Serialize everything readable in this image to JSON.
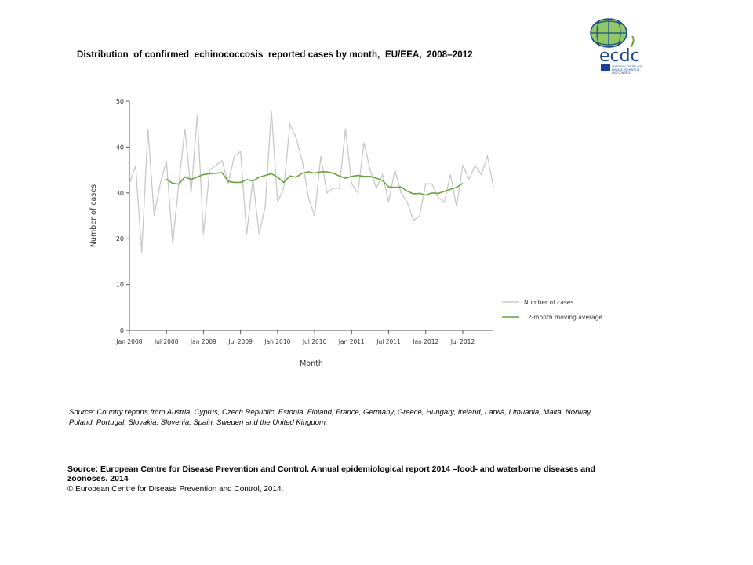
{
  "title": "Distribution  of confirmed  echinococcosis  reported cases by month,  EU/EEA,  2008–2012",
  "logo": {
    "text": "ecdc",
    "subtext": "EUROPEAN CENTRE FOR DISEASE PREVENTION AND CONTROL"
  },
  "note": "Source: Country reports from Austria, Cyprus, Czech Republic, Estonia, Finland, France, Germany, Greece, Hungary, Ireland, Latvia, Lithuania, Malta, Norway, Poland, Portugal, Slovakia, Slovenia, Spain, Sweden and the United Kingdom.",
  "source": "Source: European Centre for Disease Prevention and Control.  Annual epidemiological report 2014 –food- and waterborne diseases and zoonoses. 2014",
  "copyright": "© European Centre for Disease Prevention and Control, 2014.",
  "chart_data": {
    "type": "line",
    "xlabel": "Month",
    "ylabel": "Number of cases",
    "ylim": [
      0,
      50
    ],
    "yticks": [
      0,
      10,
      20,
      30,
      40,
      50
    ],
    "xticks": [
      "Jan 2008",
      "Jul 2008",
      "Jan 2009",
      "Jul 2009",
      "Jan 2010",
      "Jul 2010",
      "Jan 2011",
      "Jul 2011",
      "Jan 2012",
      "Jul 2012"
    ],
    "x_start": "Jan 2008",
    "x_end": "Dec 2012",
    "grid": false,
    "legend_position": "right",
    "series": [
      {
        "name": "Number of cases",
        "color": "#c8c8c8",
        "start": "Jan 2008",
        "values": [
          32,
          36,
          17,
          44,
          25,
          32,
          37,
          19,
          32,
          44,
          30,
          47,
          21,
          35,
          36,
          37,
          32,
          38,
          39,
          21,
          33,
          21,
          27,
          48,
          28,
          31,
          45,
          42,
          37,
          29,
          25,
          38,
          30,
          31,
          31,
          44,
          32,
          30,
          41,
          35,
          31,
          34,
          28,
          35,
          30,
          28,
          24,
          25,
          32,
          32,
          29,
          28,
          34,
          27,
          36,
          33,
          36,
          34,
          38,
          31
        ]
      },
      {
        "name": "12-month moving average",
        "color": "#6aa33a",
        "start": "Jul 2008",
        "values": [
          33,
          32.1,
          31.9,
          33.5,
          32.9,
          33.5,
          34,
          34.2,
          34.3,
          34.4,
          32.5,
          32.3,
          32.3,
          32.9,
          32.6,
          33.4,
          33.8,
          34.2,
          33.4,
          32.3,
          33.7,
          33.4,
          34.3,
          34.6,
          34.3,
          34.6,
          34.6,
          34.3,
          33.7,
          33.2,
          33.6,
          33.8,
          33.6,
          33.6,
          33.2,
          32.7,
          31.3,
          31.2,
          31.3,
          30.4,
          29.8,
          29.9,
          29.5,
          30,
          29.9,
          30.3,
          30.8,
          31.2,
          32.1
        ]
      }
    ]
  }
}
